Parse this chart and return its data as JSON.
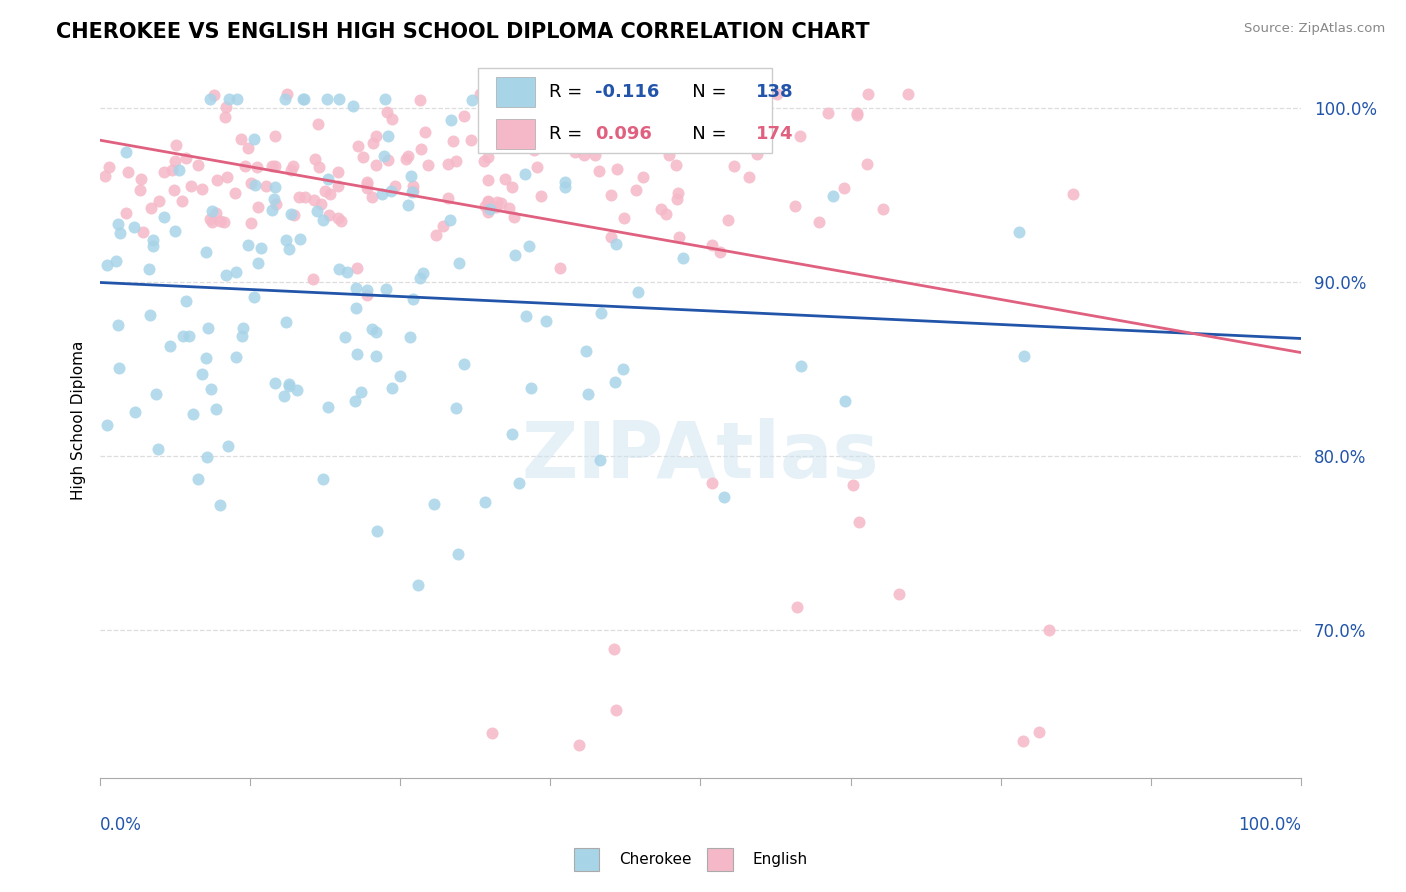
{
  "title": "CHEROKEE VS ENGLISH HIGH SCHOOL DIPLOMA CORRELATION CHART",
  "source": "Source: ZipAtlas.com",
  "ylabel": "High School Diploma",
  "cherokee_color": "#a8d4e8",
  "english_color": "#f5b8c8",
  "trendline_cherokee_color": "#2255aa",
  "trendline_english_color": "#e06080",
  "background_color": "#ffffff",
  "watermark": "ZIPAtlas",
  "title_fontsize": 15,
  "axis_label_fontsize": 11,
  "tick_fontsize": 12,
  "seed": 42,
  "n_cherokee": 138,
  "n_english": 174,
  "R_cherokee": -0.116,
  "R_english": 0.096,
  "x_range": [
    0.0,
    1.0
  ],
  "y_range": [
    0.615,
    1.025
  ],
  "y_ticks": [
    0.7,
    0.8,
    0.9,
    1.0
  ],
  "ytick_labels": [
    "70.0%",
    "80.0%",
    "90.0%",
    "100.0%"
  ],
  "grid_color": "#dddddd",
  "spine_color": "#aaaaaa"
}
